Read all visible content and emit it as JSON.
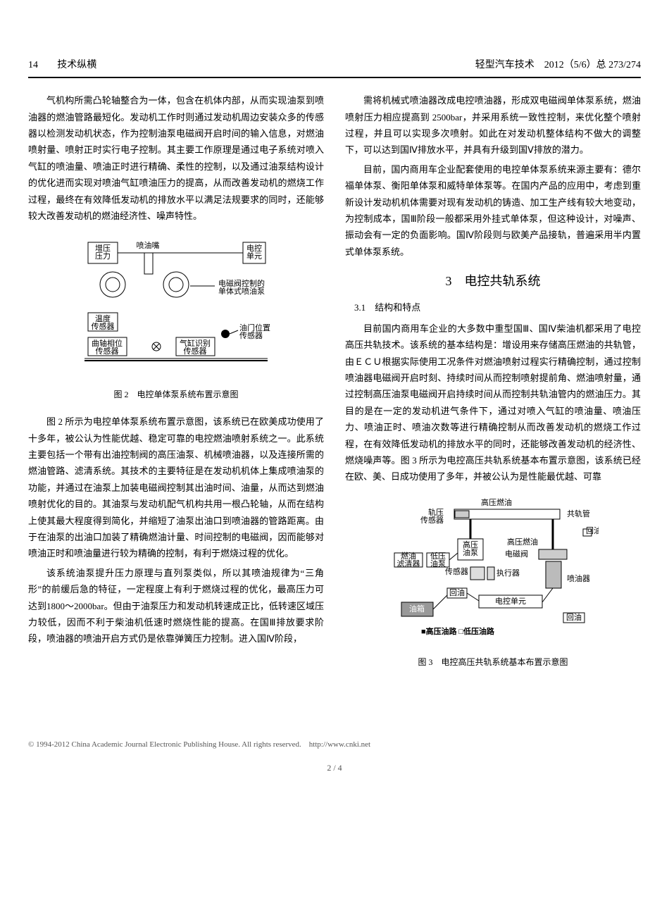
{
  "header": {
    "page": "14",
    "section": "技术纵横",
    "journal": "轻型汽车技术　2012（5/6）总 273/274"
  },
  "leftCol": {
    "p1": "气机构所需凸轮轴整合为一体，包含在机体内部，从而实现油泵到喷油器的燃油管路最短化。发动机工作时则通过发动机周边安装众多的传感器以检测发动机状态，作为控制油泵电磁阀开启时间的输入信息，对燃油喷射量、喷射正时实行电子控制。其主要工作原理是通过电子系统对喷入气缸的喷油量、喷油正时进行精确、柔性的控制，以及通过油泵结构设计的优化进而实现对喷油气缸喷油压力的提高，从而改善发动机的燃烧工作过程，最终在有效降低发动机的排放水平以满足法规要求的同时，还能够较大改善发动机的燃油经济性、噪声特性。",
    "fig2": {
      "caption": "图 2　电控单体泵系统布置示意图",
      "labels": {
        "boost": "增压\n压力",
        "nozzle": "喷油嘴",
        "ecu": "电控\n单元",
        "solenoidPump": "电磁阀控制的\n单体式喷油泵",
        "tempSensor": "温度\n传感器",
        "throttle": "油门位置\n传感器",
        "crankPhase": "曲轴相位\n传感器",
        "cylSensor": "气缸识别\n传感器"
      }
    },
    "p2": "图 2 所示为电控单体泵系统布置示意图，该系统已在欧美成功使用了十多年，被公认为性能优越、稳定可靠的电控燃油喷射系统之一。此系统主要包括一个带有出油控制阀的高压油泵、机械喷油器，以及连接所需的燃油管路、滤清系统。其技术的主要特征是在发动机机体上集成喷油泵的功能，并通过在油泵上加装电磁阀控制其出油时间、油量，从而达到燃油喷射优化的目的。其油泵与发动机配气机构共用一根凸轮轴，从而在结构上使其最大程度得到简化，并缩短了油泵出油口到喷油器的管路距离。由于在油泵的出油口加装了精确燃油计量、时间控制的电磁阀，因而能够对喷油正时和喷油量进行较为精确的控制，有利于燃烧过程的优化。",
    "p3": "该系统油泵提升压力原理与直列泵类似，所以其喷油规律为“三角形”的前缓后急的特征，一定程度上有利于燃烧过程的优化，最高压力可达到1800～2000bar。但由于油泵压力和发动机转速成正比，低转速区域压力较低，因而不利于柴油机低速时燃烧性能的提高。在国Ⅲ排放要求阶段，喷油器的喷油开启方式仍是依靠弹簧压力控制。进入国Ⅳ阶段，"
  },
  "rightCol": {
    "p1": "需将机械式喷油器改成电控喷油器，形成双电磁阀单体泵系统，燃油喷射压力相应提高到 2500bar，并采用系统一致性控制，来优化整个喷射过程，并且可以实现多次喷射。如此在对发动机整体结构不做大的调整下，可以达到国Ⅳ排放水平，并具有升级到国Ⅴ排放的潜力。",
    "p2": "目前，国内商用车企业配套使用的电控单体泵系统来源主要有：德尔福单体泵、衡阳单体泵和威特单体泵等。在国内产品的应用中，考虑到重新设计发动机机体需要对现有发动机的铸造、加工生产线有较大地变动，为控制成本，国Ⅲ阶段一般都采用外挂式单体泵，但这种设计，对噪声、振动会有一定的负面影响。国Ⅳ阶段则与欧美产品接轨，普遍采用半内置式单体泵系统。",
    "sec3Title": "3　电控共轨系统",
    "sec31": "3.1　结构和特点",
    "p3": "目前国内商用车企业的大多数中重型国Ⅲ、国Ⅳ柴油机都采用了电控高压共轨技术。该系统的基本结构是：增设用来存储高压燃油的共轨管，由ＥＣＵ根据实际使用工况条件对燃油喷射过程实行精确控制，通过控制喷油器电磁阀开启时刻、持续时间从而控制喷射提前角、燃油喷射量，通过控制高压油泵电磁阀开启持续时间从而控制共轨油管内的燃油压力。其目的是在一定的发动机进气条件下，通过对喷入气缸的喷油量、喷油压力、喷油正时、喷油次数等进行精确控制从而改善发动机的燃烧工作过程，在有效降低发动机的排放水平的同时，还能够改善发动机的经济性、燃烧噪声等。图 3 所示为电控高压共轨系统基本布置示意图，该系统已经在欧、美、日成功使用了多年，并被公认为是性能最优越、可靠",
    "fig3": {
      "caption": "图 3　电控高压共轨系统基本布置示意图",
      "labels": {
        "hpFuel": "高压燃油",
        "rail": "共轨管",
        "railP": "轨压\n传感器",
        "return": "回油",
        "hpPump": "高压\n油泵",
        "hpFuel2": "高压燃油",
        "filter": "燃油\n滤清器",
        "lpPump": "低压\n油泵",
        "solenoid": "电磁阀",
        "sensors": "传感器",
        "actuator": "执行器",
        "injector": "喷油器",
        "returnOil": "回油",
        "ecu": "电控单元",
        "tank": "油箱",
        "return2": "回油",
        "legend": "■高压油路 □低压油路"
      }
    }
  },
  "footer": {
    "copyright": "© 1994-2012 China Academic Journal Electronic Publishing House. All rights reserved.　http://www.cnki.net",
    "pager": "2 / 4"
  }
}
